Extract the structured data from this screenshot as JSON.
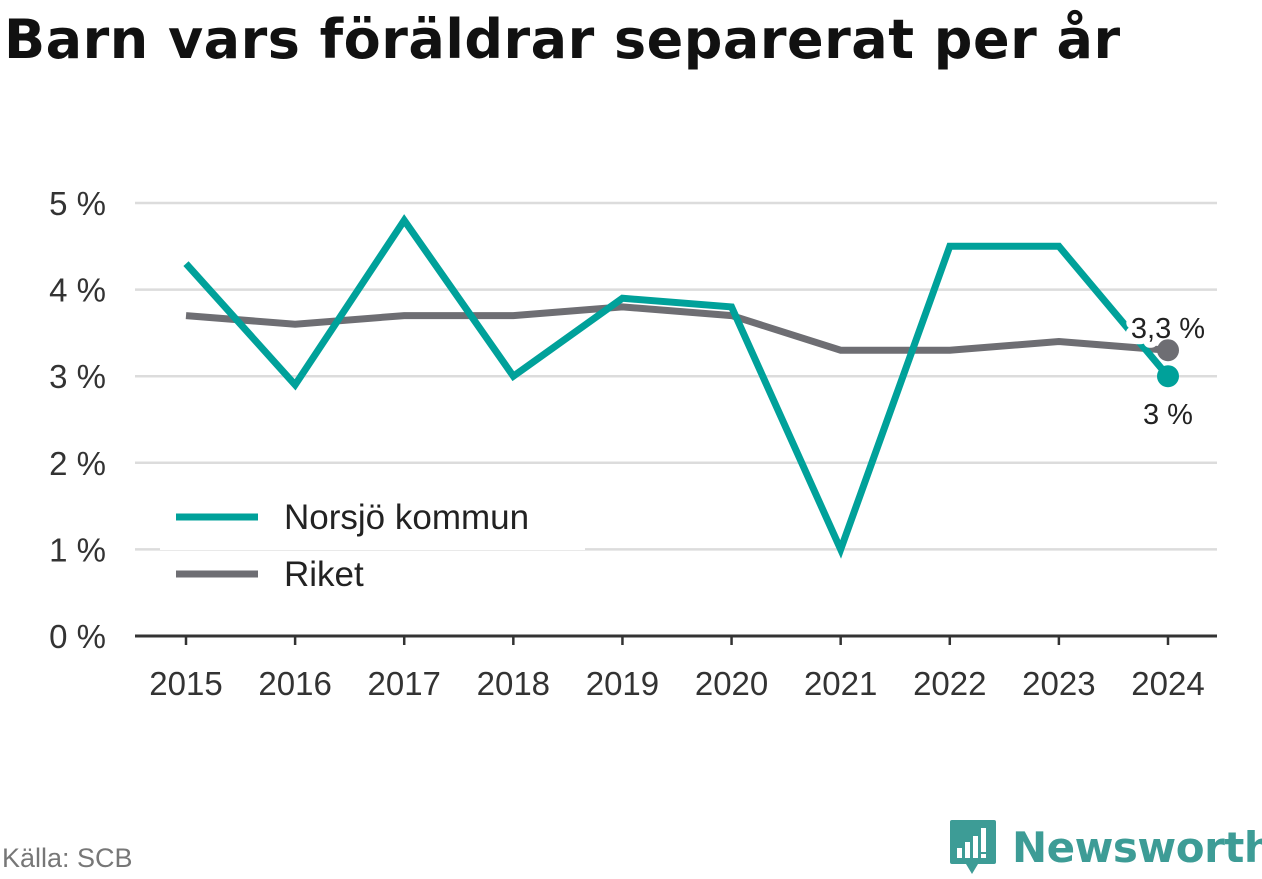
{
  "chart_data": {
    "type": "line",
    "title": "Barn vars föräldrar separerat per år",
    "xlabel": "",
    "ylabel": "",
    "x": [
      "2015",
      "2016",
      "2017",
      "2018",
      "2019",
      "2020",
      "2021",
      "2022",
      "2023",
      "2024"
    ],
    "series": [
      {
        "name": "Norsjö kommun",
        "color": "#00a19a",
        "values": [
          4.3,
          2.9,
          4.8,
          3.0,
          3.9,
          3.8,
          1.0,
          4.5,
          4.5,
          3.0
        ],
        "end_label": "3 %"
      },
      {
        "name": "Riket",
        "color": "#6e6e73",
        "values": [
          3.7,
          3.6,
          3.7,
          3.7,
          3.8,
          3.7,
          3.3,
          3.3,
          3.4,
          3.3
        ],
        "end_label": "3,3 %"
      }
    ],
    "ylim": [
      0,
      5
    ],
    "yticks": [
      "0 %",
      "1 %",
      "2 %",
      "3 %",
      "4 %",
      "5 %"
    ],
    "grid": true,
    "legend_position": "bottom-left"
  },
  "source": "Källa: SCB",
  "brand": {
    "name": "Newsworthy",
    "color": "#3d9c96"
  }
}
